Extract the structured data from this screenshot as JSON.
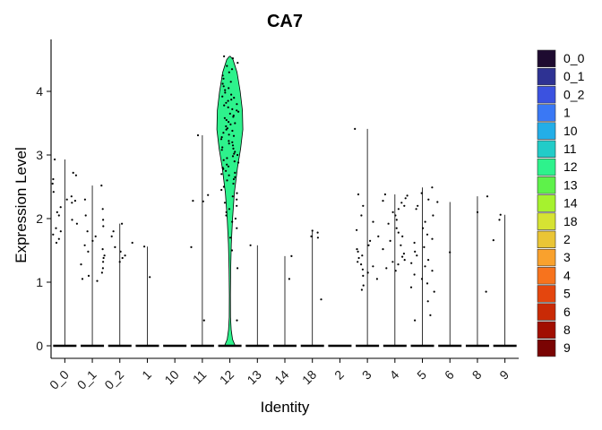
{
  "chart_data": {
    "type": "violin",
    "title": "CA7",
    "xlabel": "Identity",
    "ylabel": "Expression Level",
    "ylim": [
      -0.2,
      4.62
    ],
    "yticks": [
      0,
      1,
      2,
      3,
      4
    ],
    "grid": false,
    "legend_position": "right",
    "categories": [
      "0_0",
      "0_1",
      "0_2",
      "1",
      "10",
      "11",
      "12",
      "13",
      "14",
      "18",
      "2",
      "3",
      "4",
      "5",
      "6",
      "8",
      "9"
    ],
    "colors": {
      "0_0": "#1e0b30",
      "0_1": "#2e3293",
      "0_2": "#3b52e0",
      "1": "#3a78f5",
      "10": "#23aee8",
      "11": "#22ccc8",
      "12": "#2ef28c",
      "13": "#5ef24a",
      "14": "#a6f22e",
      "18": "#d6e333",
      "2": "#eac535",
      "3": "#f9a12d",
      "4": "#f7731d",
      "5": "#e4460e",
      "6": "#c92a06",
      "8": "#a10e01",
      "9": "#7a0403"
    },
    "max_expression": {
      "0_0": 2.93,
      "0_1": 2.52,
      "0_2": 1.92,
      "1": 1.56,
      "10": 0.0,
      "11": 3.31,
      "12": 4.55,
      "13": 1.58,
      "14": 1.41,
      "18": 1.81,
      "2": 0.0,
      "3": 3.41,
      "4": 2.38,
      "5": 2.49,
      "6": 2.26,
      "8": 2.35,
      "9": 2.06
    },
    "expression_points": {
      "0_0": [
        2.93,
        2.72,
        2.68,
        2.62,
        2.55,
        2.42,
        2.35,
        2.3,
        2.28,
        2.25,
        2.18,
        2.1,
        2.05,
        1.98,
        1.92,
        1.85,
        1.8,
        1.75,
        1.68,
        1.62
      ],
      "0_1": [
        2.52,
        2.3,
        2.15,
        2.05,
        1.98,
        1.88,
        1.8,
        1.72,
        1.65,
        1.58,
        1.52,
        1.48,
        1.42,
        1.38,
        1.32,
        1.28,
        1.22,
        1.15,
        1.1,
        1.05,
        1.02
      ],
      "0_2": [
        1.92,
        1.8,
        1.72,
        1.62,
        1.55,
        1.48,
        1.42,
        1.38,
        1.32
      ],
      "1": [
        1.56,
        1.08
      ],
      "10": [],
      "11": [
        3.31,
        2.37,
        2.28,
        2.27,
        1.55,
        0.4
      ],
      "12": [
        4.55,
        4.52,
        4.45,
        4.4,
        4.35,
        4.3,
        4.25,
        4.2,
        4.15,
        4.12,
        4.08,
        4.05,
        4.02,
        3.98,
        3.95,
        3.92,
        3.9,
        3.87,
        3.85,
        3.82,
        3.8,
        3.78,
        3.75,
        3.72,
        3.7,
        3.68,
        3.65,
        3.62,
        3.6,
        3.58,
        3.55,
        3.52,
        3.5,
        3.48,
        3.45,
        3.42,
        3.4,
        3.38,
        3.35,
        3.32,
        3.3,
        3.28,
        3.25,
        3.22,
        3.2,
        3.18,
        3.15,
        3.12,
        3.1,
        3.08,
        3.05,
        3.02,
        3.0,
        2.98,
        2.95,
        2.92,
        2.9,
        2.88,
        2.85,
        2.82,
        2.8,
        2.78,
        2.75,
        2.72,
        2.7,
        2.68,
        2.65,
        2.62,
        2.6,
        2.55,
        2.5,
        2.45,
        2.4,
        2.35,
        2.3,
        2.25,
        2.2,
        2.15,
        2.1,
        2.05,
        2.0,
        1.95,
        1.85,
        1.7,
        1.5,
        1.22,
        0.4
      ],
      "13": [
        1.58
      ],
      "14": [
        1.41,
        1.05
      ],
      "18": [
        1.81,
        1.78,
        1.72,
        1.7,
        0.73
      ],
      "2": [],
      "3": [
        3.41,
        2.38,
        2.2,
        2.05,
        1.95,
        1.82,
        1.72,
        1.65,
        1.58,
        1.52,
        1.48,
        1.42,
        1.38,
        1.32,
        1.28,
        1.25,
        1.2,
        1.15,
        1.1,
        1.05,
        0.95,
        0.88
      ],
      "4": [
        2.38,
        2.36,
        2.32,
        2.28,
        2.25,
        2.2,
        2.15,
        2.1,
        2.05,
        1.98,
        1.92,
        1.85,
        1.78,
        1.72,
        1.65,
        1.58,
        1.52,
        1.45,
        1.4,
        1.35,
        1.32,
        1.28,
        1.22,
        1.18
      ],
      "5": [
        2.49,
        2.4,
        2.3,
        2.2,
        2.15,
        2.05,
        1.95,
        1.85,
        1.75,
        1.68,
        1.62,
        1.55,
        1.48,
        1.42,
        1.35,
        1.3,
        1.25,
        1.18,
        1.12,
        1.05,
        0.98,
        0.92,
        0.85,
        0.7,
        0.48,
        0.4
      ],
      "6": [
        2.26,
        1.47
      ],
      "8": [
        2.35,
        2.1,
        0.85
      ],
      "9": [
        2.06,
        1.98,
        1.66
      ]
    }
  }
}
